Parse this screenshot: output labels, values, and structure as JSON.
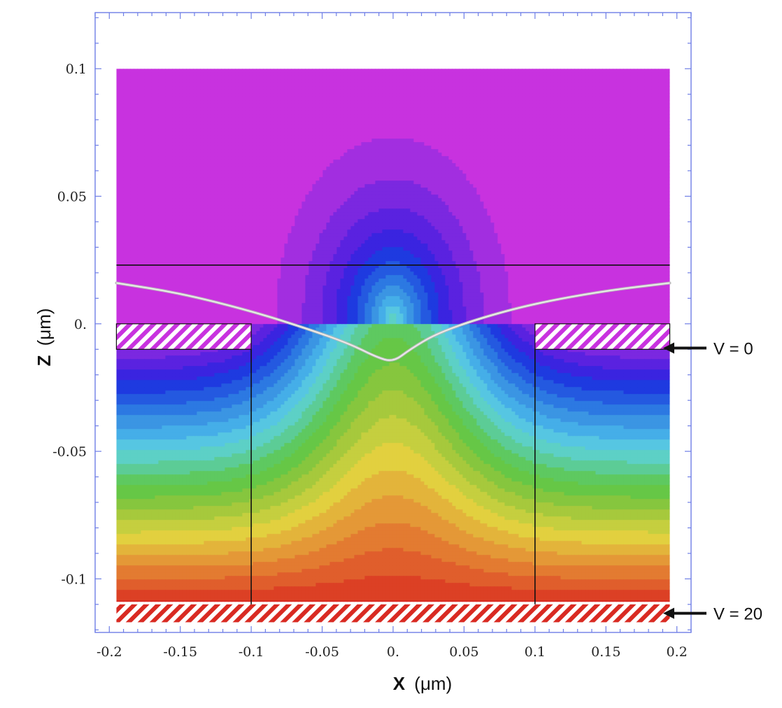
{
  "chart_data": {
    "type": "heatmap",
    "title": "",
    "xlabel": {
      "bold": "X",
      "unit": "(μm)"
    },
    "ylabel": {
      "bold": "Z",
      "unit": "(μm)"
    },
    "xlim": [
      -0.21,
      0.21
    ],
    "ylim": [
      -0.121,
      0.122
    ],
    "x_ticks": [
      -0.2,
      -0.15,
      -0.1,
      -0.05,
      0.0,
      0.05,
      0.1,
      0.15,
      0.2
    ],
    "x_tick_labels": [
      "-0.2",
      "-0.15",
      "-0.1",
      "-0.05",
      "0.",
      "0.05",
      "0.1",
      "0.15",
      "0.2"
    ],
    "y_ticks": [
      0.1,
      0.05,
      0.0,
      -0.05,
      -0.1
    ],
    "y_tick_labels": [
      "0.1",
      "0.05",
      "0.",
      "-0.05",
      "-0.1"
    ],
    "field_domain": {
      "x": [
        -0.195,
        0.195
      ],
      "z": [
        -0.109,
        0.1
      ]
    },
    "color_scale": [
      "#c832df",
      "#a22ee0",
      "#7b28e0",
      "#5a22e0",
      "#3a24e0",
      "#1e3ae0",
      "#2459e0",
      "#2c79e2",
      "#3b95e3",
      "#45aee8",
      "#56c6e2",
      "#5dd0c6",
      "#5ccc96",
      "#5ec960",
      "#66c746",
      "#86c63e",
      "#a6c93c",
      "#c5cf3f",
      "#e2d03f",
      "#e3b43b",
      "#e49837",
      "#e37b31",
      "#e05e2c",
      "#dc4025",
      "#d92a22"
    ],
    "electrodes": [
      {
        "label": "V = 0",
        "x": [
          -0.195,
          -0.1
        ],
        "z": [
          -0.01,
          0.0
        ],
        "color": "#c832df"
      },
      {
        "label": "",
        "x": [
          0.1,
          0.195
        ],
        "z": [
          -0.01,
          0.0
        ],
        "color": "#c832df"
      },
      {
        "label": "V = 20",
        "x": [
          -0.195,
          0.195
        ],
        "z": [
          -0.117,
          -0.11
        ],
        "color": "#d92a22"
      }
    ],
    "boundary_lines": [
      {
        "x": [
          -0.195,
          0.195
        ],
        "z": [
          0.023,
          0.023
        ]
      },
      {
        "x": [
          -0.1,
          -0.1
        ],
        "z": [
          -0.01,
          -0.11
        ]
      },
      {
        "x": [
          0.1,
          0.1
        ],
        "z": [
          -0.01,
          -0.11
        ]
      }
    ],
    "trajectory": {
      "x": [
        -0.195,
        -0.15,
        -0.1,
        -0.06,
        -0.03,
        -0.012,
        0.0,
        0.012,
        0.03,
        0.06,
        0.1,
        0.15,
        0.195
      ],
      "z": [
        0.016,
        0.012,
        0.005,
        -0.002,
        -0.008,
        -0.013,
        -0.015,
        -0.01,
        -0.004,
        0.002,
        0.008,
        0.013,
        0.016
      ]
    }
  }
}
